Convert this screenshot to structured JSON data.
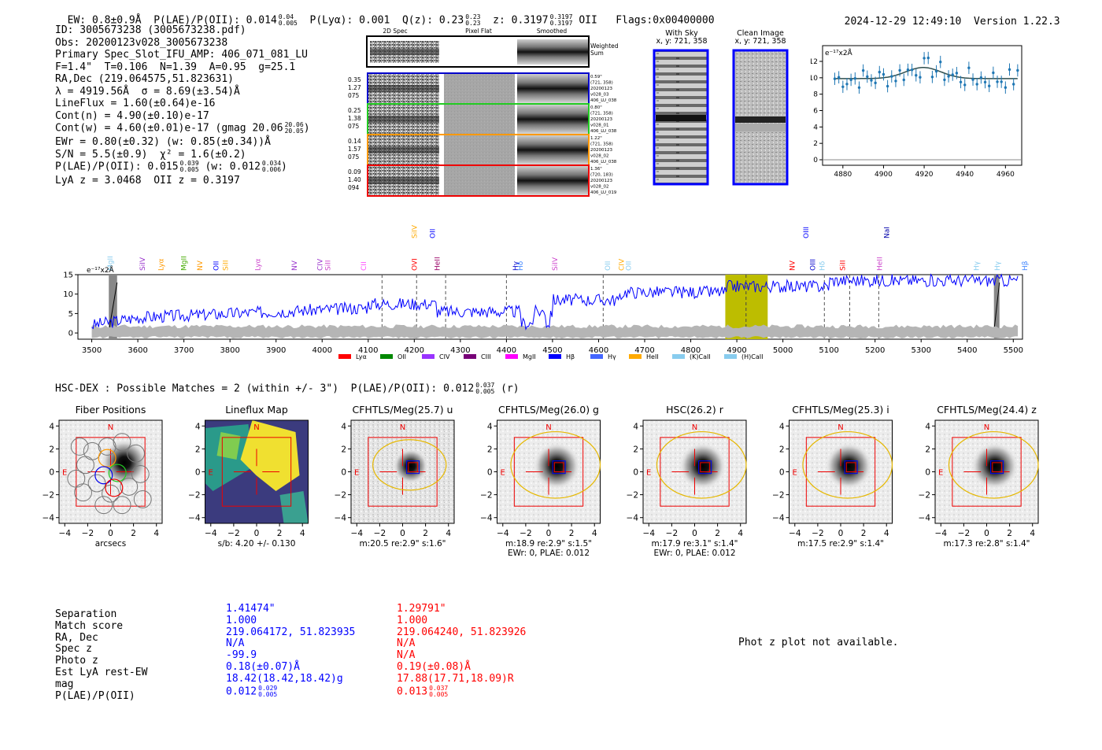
{
  "header": {
    "ew": "EW: 0.8±0.9Å",
    "plae_label": "P(LAE)/P(OII): 0.014",
    "plae_hi": "0.04",
    "plae_lo": "0.005",
    "plya": "P(Lyα): 0.001",
    "qz_label": "Q(z): 0.23",
    "qz_hi": "0.23",
    "qz_lo": "0.23",
    "z_label": "z: 0.3197",
    "z_hi": "0.3197",
    "z_lo": "0.3197",
    "z_line": "OII",
    "flags": "Flags:0x00400000",
    "datetime": "2024-12-29 12:49:10",
    "version": "Version 1.22.3"
  },
  "info": {
    "id": "ID: 3005673238 (3005673238.pdf)",
    "obs": "Obs: 20200123v028_3005673238",
    "primary": "Primary Spec_Slot_IFU_AMP: 406_071_081_LU",
    "fline": "F=1.4\"  T=0.106  N=1.39  A=0.95  g=25.1",
    "radec": "RA,Dec (219.064575,51.823631)",
    "lambda": "λ = 4919.56Å  σ = 8.69(±3.54)Å",
    "lineflux": "LineFlux = 1.60(±0.64)e-16",
    "contn": "Cont(n) = 4.90(±0.10)e-17",
    "contw": "Cont(w) = 4.60(±0.01)e-17 (gmag 20.06",
    "contw_hi": "20.06",
    "contw_lo": "20.05",
    "contw_end": ")",
    "ewr": "EWr = 0.80(±0.32) (w: 0.85(±0.34))Å",
    "sn": "S/N = 5.5(±0.9)  χ² = 1.6(±0.2)",
    "plae": "P(LAE)/P(OII): 0.015",
    "plae_hi": "0.039",
    "plae_lo": "0.005",
    "plae_w": "(w: 0.012",
    "plae_w_hi": "0.034",
    "plae_w_lo": "0.006",
    "plae_end": ")",
    "lyaz": "LyA z = 3.0468  OII z = 0.3197"
  },
  "cutouts": {
    "col_2d": "2D Spec",
    "col_flat": "Pixel Flat",
    "col_smooth": "Smoothed",
    "weighted": "Weighted\nSum",
    "rows": [
      {
        "l1": "0.35",
        "l2": "1.27",
        "l3": "075",
        "color": "#0000cc",
        "r1": "0.59\"",
        "r2": "(721, 358)",
        "r3": "20200123",
        "r4": "v028_03",
        "r5": "406_LU_038"
      },
      {
        "l1": "0.25",
        "l2": "1.38",
        "l3": "075",
        "color": "#22cc22",
        "r1": "0.80\"",
        "r2": "(721, 358)",
        "r3": "20200123",
        "r4": "v028_01",
        "r5": "406_LU_038"
      },
      {
        "l1": "0.14",
        "l2": "1.57",
        "l3": "075",
        "color": "#ff9900",
        "r1": "1.22\"",
        "r2": "(721, 358)",
        "r3": "20200123",
        "r4": "v028_02",
        "r5": "406_LU_038"
      },
      {
        "l1": "0.09",
        "l2": "1.40",
        "l3": "094",
        "color": "#ee0000",
        "r1": "1.36\"",
        "r2": "(720, 183)",
        "r3": "20200123",
        "r4": "v028_02",
        "r5": "406_LU_019"
      }
    ]
  },
  "sky": {
    "with_sky": "With Sky",
    "with_sky_xy": "x, y: 721, 358",
    "clean": "Clean Image",
    "clean_xy": "x, y: 721, 358"
  },
  "fitplot": {
    "unit": "e⁻¹⁷x2Å",
    "yticks": [
      "12",
      "10",
      "8",
      "6",
      "4",
      "2",
      "0"
    ],
    "xticks": [
      "4880",
      "4900",
      "4920",
      "4940",
      "4960"
    ]
  },
  "spectrum": {
    "unit": "e⁻¹⁷x2Å",
    "yticks": [
      "15",
      "10",
      "5",
      "0"
    ],
    "xticks": [
      "3500",
      "3600",
      "3700",
      "3800",
      "3900",
      "4000",
      "4100",
      "4200",
      "4300",
      "4400",
      "4500",
      "4600",
      "4700",
      "4800",
      "4900",
      "5000",
      "5100",
      "5200",
      "5300",
      "5400",
      "5500"
    ],
    "lines_row1": [
      {
        "name": "MgII",
        "color": "#88ccee"
      },
      {
        "name": "SiIV",
        "color": "#9933cc"
      },
      {
        "name": "Lyα",
        "color": "#ff9900"
      },
      {
        "name": "MgII",
        "color": "#44aa00"
      },
      {
        "name": "NV",
        "color": "#ff9900"
      },
      {
        "name": "OII",
        "color": "#0000ff"
      },
      {
        "name": "SiII",
        "color": "#ffaa00"
      },
      {
        "name": "Lyα",
        "color": "#cc44cc"
      },
      {
        "name": "NV",
        "color": "#9933cc"
      },
      {
        "name": "CIV",
        "color": "#9933cc"
      },
      {
        "name": "SiII",
        "color": "#cc44cc"
      },
      {
        "name": "CII",
        "color": "#ff44ff"
      },
      {
        "name": "OVI",
        "color": "#ff0000"
      },
      {
        "name": "HeII",
        "color": "#990066"
      },
      {
        "name": "Hγ",
        "color": "#0000cc"
      },
      {
        "name": "Hδ",
        "color": "#4488ff"
      },
      {
        "name": "SiIV",
        "color": "#cc44cc"
      },
      {
        "name": "OII",
        "color": "#88ccee"
      },
      {
        "name": "CIV",
        "color": "#ffaa00"
      },
      {
        "name": "OII",
        "color": "#88ccee"
      },
      {
        "name": "NV",
        "color": "#ff0000"
      },
      {
        "name": "OIII",
        "color": "#0000cc"
      },
      {
        "name": "Hδ",
        "color": "#88ccee"
      },
      {
        "name": "SiII",
        "color": "#ff0000"
      },
      {
        "name": "HeII",
        "color": "#cc44cc"
      },
      {
        "name": "Hγ",
        "color": "#88ccee"
      },
      {
        "name": "Hγ",
        "color": "#88ccee"
      },
      {
        "name": "Hβ",
        "color": "#4488ff"
      }
    ],
    "lines_row2": [
      {
        "name": "SiIV",
        "color": "#ffaa00"
      },
      {
        "name": "OII",
        "color": "#0000ff"
      },
      {
        "name": "OIII",
        "color": "#0000ff"
      },
      {
        "name": "NaI",
        "color": "#0000aa"
      }
    ],
    "legend": [
      {
        "name": "Lyα",
        "color": "#ff0000"
      },
      {
        "name": "OII",
        "color": "#008800"
      },
      {
        "name": "CIV",
        "color": "#9933ff"
      },
      {
        "name": "CIII",
        "color": "#770077"
      },
      {
        "name": "MgII",
        "color": "#ff00ff"
      },
      {
        "name": "Hβ",
        "color": "#0000ff"
      },
      {
        "name": "Hγ",
        "color": "#4466ff"
      },
      {
        "name": "HeII",
        "color": "#ffaa00"
      },
      {
        "name": "(K)CaII",
        "color": "#88ccee"
      },
      {
        "name": "(H)CaII",
        "color": "#88ccee"
      }
    ]
  },
  "hsc": {
    "title": "HSC-DEX : Possible Matches = 2 (within +/- 3\")  P(LAE)/P(OII): 0.012",
    "hi": "0.037",
    "lo": "0.005",
    "end": "(r)"
  },
  "panels": [
    {
      "title": "Fiber Positions",
      "xlabel": "arcsecs",
      "sub": ""
    },
    {
      "title": "Lineflux Map",
      "xlabel": "s/b: 4.20 +/- 0.130",
      "sub": ""
    },
    {
      "title": "CFHTLS/Meg(25.7) u",
      "xlabel": "m:20.5  re:2.9\"  s:1.6\"",
      "sub": ""
    },
    {
      "title": "CFHTLS/Meg(26.0) g",
      "xlabel": "m:18.9  re:2.9\"  s:1.5\"",
      "sub": "EWr: 0, PLAE: 0.012"
    },
    {
      "title": "HSC(26.2) r",
      "xlabel": "m:17.9  re:3.1\"  s:1.4\"",
      "sub": "EWr: 0, PLAE: 0.012"
    },
    {
      "title": "CFHTLS/Meg(25.3) i",
      "xlabel": "m:17.5  re:2.9\"  s:1.4\"",
      "sub": ""
    },
    {
      "title": "CFHTLS/Meg(24.4) z",
      "xlabel": "m:17.3  re:2.8\"  s:1.4\"",
      "sub": ""
    }
  ],
  "panel_axis": {
    "yticks": [
      "4",
      "2",
      "0",
      "−2",
      "−4"
    ],
    "xticks": [
      "−4",
      "−2",
      "0",
      "2",
      "4"
    ],
    "north": "N",
    "east": "E"
  },
  "match_table": {
    "labels": [
      "Separation",
      "Match score",
      "RA, Dec",
      "Spec z",
      "Photo z",
      "Est LyA rest-EW",
      "mag",
      "P(LAE)/P(OII)"
    ],
    "col1": [
      "1.41474\"",
      "1.000",
      "219.064172, 51.823935",
      "N/A",
      "-99.9",
      "0.18(±0.07)Å",
      "18.42(18.42,18.42)g",
      "0.012"
    ],
    "col1_hi": "0.029",
    "col1_lo": "0.005",
    "col2": [
      "1.29791\"",
      "1.000",
      "219.064240, 51.823926",
      "N/A",
      "N/A",
      "0.19(±0.08)Å",
      "17.88(17.71,18.09)R",
      "0.013"
    ],
    "col2_hi": "0.037",
    "col2_lo": "0.005"
  },
  "photz_message": "Phot z plot not available."
}
